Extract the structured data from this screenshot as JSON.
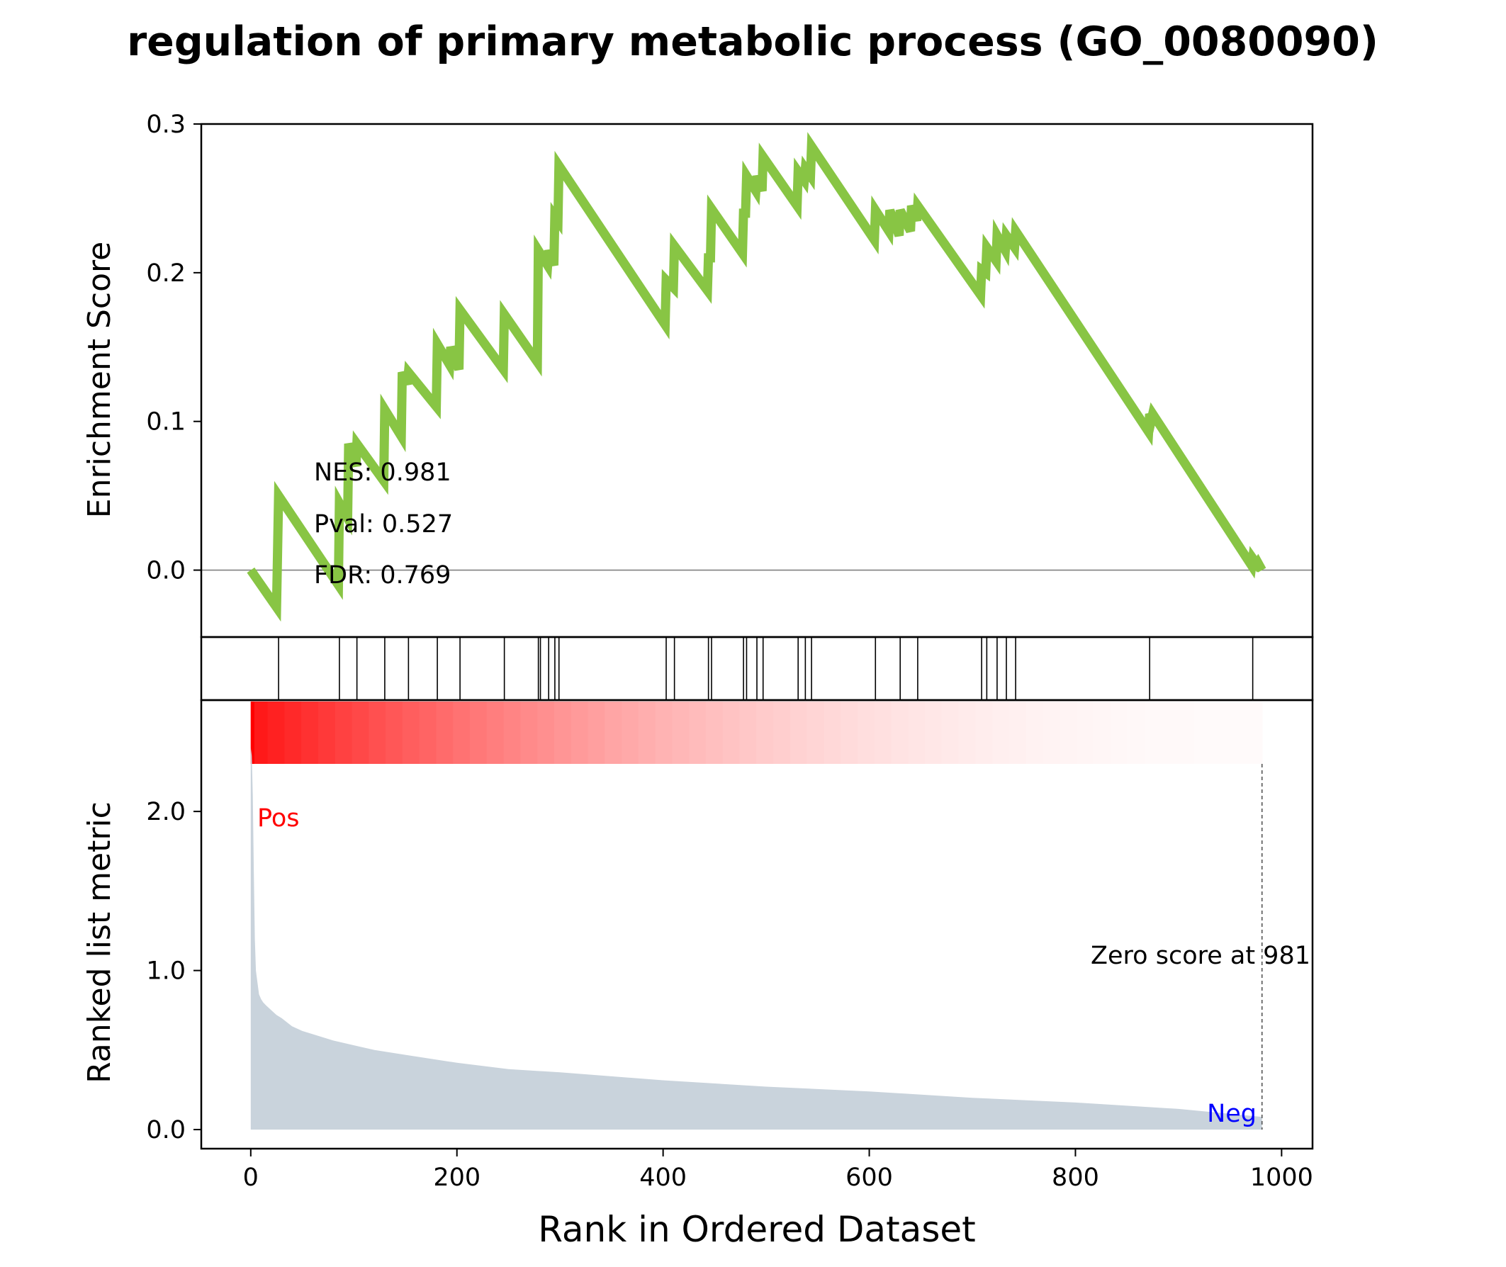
{
  "title": "regulation of primary metabolic process (GO_0080090)",
  "colors": {
    "es_line": "#88c544",
    "hit_line": "#000000",
    "metric_fill": "#c9d3dc",
    "heat_high": "#ff0000",
    "pos_label": "#ff0000",
    "neg_label": "#0000ff",
    "zero_line": "#808080"
  },
  "stats": {
    "nes": "NES: 0.981",
    "pval": "Pval: 0.527",
    "fdr": "FDR: 0.769"
  },
  "labels": {
    "pos": "Pos",
    "neg": "Neg",
    "zero_score": "Zero score at 981"
  },
  "chart_data": [
    {
      "panel": "enrichment-score",
      "type": "line",
      "ylabel": "Enrichment Score",
      "ylim": [
        -0.045,
        0.3
      ],
      "yticks": [
        0.0,
        0.1,
        0.2,
        0.3
      ],
      "ytick_labels": [
        "0.0",
        "0.1",
        "0.2",
        "0.3"
      ],
      "xlim": [
        -48,
        1030
      ],
      "grid": false,
      "series": [
        {
          "x": [
            0,
            25,
            27,
            85,
            86,
            94,
            95,
            102,
            103,
            129,
            130,
            146,
            147,
            152,
            153,
            180,
            181,
            193,
            194,
            202,
            203,
            245,
            246,
            278,
            279,
            288,
            289,
            294,
            295,
            298,
            299,
            402,
            403,
            410,
            411,
            443,
            444,
            446,
            447,
            477,
            478,
            480,
            481,
            490,
            491,
            496,
            497,
            530,
            531,
            537,
            538,
            543,
            544,
            605,
            606,
            619,
            620,
            629,
            630,
            640,
            641,
            646,
            647,
            708,
            709,
            713,
            714,
            723,
            724,
            732,
            733,
            741,
            742,
            871,
            872,
            874,
            875,
            971,
            972,
            976,
            977,
            981
          ],
          "y": [
            0.0,
            -0.025,
            0.05,
            -0.01,
            0.045,
            0.035,
            0.085,
            0.07,
            0.085,
            0.06,
            0.108,
            0.09,
            0.133,
            0.125,
            0.133,
            0.11,
            0.152,
            0.138,
            0.15,
            0.135,
            0.175,
            0.135,
            0.172,
            0.14,
            0.215,
            0.205,
            0.215,
            0.205,
            0.238,
            0.235,
            0.272,
            0.165,
            0.195,
            0.19,
            0.218,
            0.188,
            0.21,
            0.21,
            0.243,
            0.213,
            0.24,
            0.24,
            0.265,
            0.255,
            0.265,
            0.255,
            0.278,
            0.245,
            0.268,
            0.262,
            0.27,
            0.265,
            0.285,
            0.222,
            0.242,
            0.228,
            0.242,
            0.225,
            0.242,
            0.228,
            0.245,
            0.235,
            0.245,
            0.185,
            0.202,
            0.2,
            0.217,
            0.208,
            0.225,
            0.215,
            0.225,
            0.217,
            0.228,
            0.093,
            0.105,
            0.102,
            0.105,
            0.003,
            0.008,
            0.004,
            0.005,
            0.0
          ]
        }
      ]
    },
    {
      "panel": "hit-markers",
      "type": "rug",
      "x": [
        27,
        86,
        103,
        130,
        153,
        181,
        203,
        246,
        279,
        281,
        289,
        295,
        299,
        403,
        411,
        444,
        447,
        478,
        481,
        491,
        497,
        531,
        538,
        544,
        606,
        630,
        647,
        709,
        714,
        724,
        733,
        742,
        872,
        972
      ]
    },
    {
      "panel": "ranked-metric",
      "type": "area",
      "ylabel": "Ranked list metric",
      "xlabel": "Rank in Ordered Dataset",
      "ylim": [
        -0.12,
        2.7
      ],
      "yticks": [
        0.0,
        1.0,
        2.0
      ],
      "ytick_labels": [
        "0.0",
        "1.0",
        "2.0"
      ],
      "xlim": [
        -48,
        1030
      ],
      "xticks": [
        0,
        200,
        400,
        600,
        800,
        1000
      ],
      "xtick_labels": [
        "0",
        "200",
        "400",
        "600",
        "800",
        "1000"
      ],
      "zero_cross": 981,
      "series": [
        {
          "x": [
            0,
            1,
            2,
            3,
            4,
            5,
            6,
            7,
            8,
            10,
            12,
            15,
            20,
            25,
            30,
            40,
            50,
            60,
            80,
            100,
            120,
            150,
            200,
            250,
            300,
            400,
            500,
            600,
            700,
            800,
            900,
            981
          ],
          "y": [
            2.4,
            2.35,
            2.1,
            1.6,
            1.2,
            1.0,
            0.95,
            0.9,
            0.85,
            0.82,
            0.8,
            0.78,
            0.75,
            0.72,
            0.7,
            0.65,
            0.62,
            0.6,
            0.56,
            0.53,
            0.5,
            0.47,
            0.42,
            0.38,
            0.36,
            0.31,
            0.27,
            0.24,
            0.2,
            0.17,
            0.13,
            0.08
          ]
        }
      ]
    }
  ]
}
